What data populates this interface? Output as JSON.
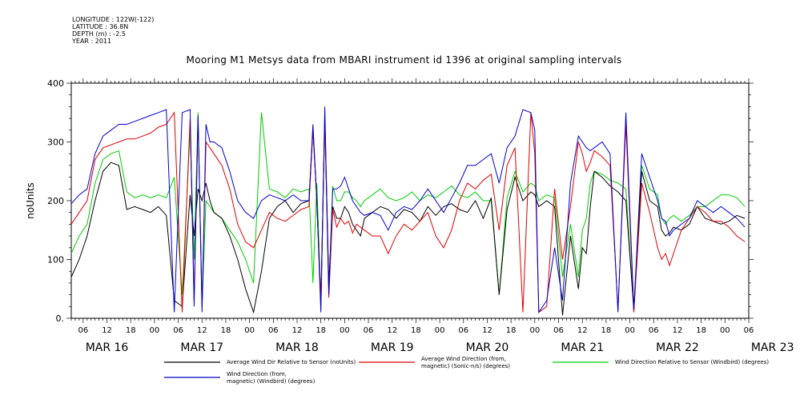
{
  "header": {
    "longitude": "LONGITUDE : 122W(-122)",
    "latitude": "LATITUDE : 36.8N",
    "depth": "DEPTH (m) : -2.5",
    "year": "YEAR : 2011"
  },
  "chart_data": {
    "type": "line",
    "title": "Mooring M1 Metsys data from MBARI instrument id 1396 at original sampling intervals",
    "ylabel": "noUnits",
    "xlabel": "",
    "ylim": [
      0,
      400
    ],
    "yticks": [
      0,
      100,
      200,
      300,
      400
    ],
    "ytick_labels": [
      "0.",
      "100",
      "200",
      "300",
      "400"
    ],
    "xlim_hours": [
      3,
      174
    ],
    "xtick_labels": [
      "06",
      "12",
      "18",
      "00",
      "06",
      "12",
      "18",
      "00",
      "06",
      "12",
      "18",
      "00",
      "06",
      "12",
      "18",
      "00",
      "06",
      "12",
      "18",
      "00",
      "06",
      "12",
      "18",
      "00",
      "06",
      "12",
      "18",
      "00",
      "06"
    ],
    "date_labels": [
      "MAR 16",
      "MAR 17",
      "MAR 18",
      "MAR 19",
      "MAR 20",
      "MAR 21",
      "MAR 22",
      "MAR 23"
    ],
    "grid": false,
    "legend_position": "bottom",
    "x_hours": [
      3,
      5,
      7,
      9,
      11,
      13,
      15,
      17,
      19,
      21,
      23,
      25,
      27,
      29,
      31,
      33,
      34,
      35,
      36,
      37,
      38,
      39,
      41,
      43,
      45,
      47,
      49,
      51,
      53,
      55,
      57,
      59,
      61,
      63,
      64,
      65,
      66,
      67,
      68,
      69,
      70,
      71,
      72,
      73,
      74,
      75,
      76,
      77,
      79,
      81,
      83,
      85,
      87,
      89,
      91,
      93,
      95,
      97,
      99,
      101,
      103,
      105,
      107,
      109,
      111,
      113,
      115,
      117,
      119,
      120,
      121,
      123,
      125,
      127,
      129,
      131,
      132,
      133,
      134,
      135,
      137,
      139,
      141,
      143,
      145,
      147,
      149,
      151,
      152,
      153,
      154,
      155,
      157,
      159,
      161,
      163,
      165,
      167,
      169,
      171,
      173
    ],
    "series": [
      {
        "name": "Average Wind Dir Relative to Sensor (noUnits)",
        "color": "#000000",
        "values": [
          70,
          100,
          140,
          200,
          250,
          265,
          260,
          185,
          190,
          185,
          180,
          190,
          175,
          30,
          20,
          210,
          140,
          220,
          200,
          230,
          200,
          180,
          170,
          140,
          100,
          50,
          10,
          80,
          170,
          190,
          200,
          180,
          195,
          200,
          320,
          200,
          20,
          340,
          60,
          190,
          170,
          170,
          190,
          180,
          160,
          150,
          140,
          170,
          180,
          190,
          185,
          170,
          185,
          180,
          165,
          190,
          175,
          190,
          195,
          185,
          180,
          200,
          170,
          205,
          40,
          185,
          240,
          200,
          215,
          210,
          190,
          200,
          190,
          5,
          140,
          50,
          120,
          110,
          190,
          250,
          240,
          225,
          215,
          200,
          15,
          250,
          200,
          190,
          150,
          140,
          145,
          155,
          150,
          160,
          190,
          170,
          165,
          160,
          165,
          175,
          170
        ]
      },
      {
        "name": "Average Wind Direction (from, magnetic) (Sonic-n/s) (degrees)",
        "color": "#dd0000",
        "values": [
          160,
          180,
          200,
          270,
          290,
          295,
          300,
          305,
          305,
          310,
          315,
          325,
          330,
          350,
          10,
          340,
          30,
          340,
          20,
          300,
          290,
          280,
          260,
          220,
          160,
          130,
          120,
          150,
          180,
          170,
          165,
          175,
          185,
          190,
          325,
          195,
          30,
          340,
          35,
          185,
          155,
          170,
          160,
          165,
          145,
          160,
          155,
          150,
          140,
          140,
          110,
          140,
          160,
          150,
          165,
          180,
          140,
          120,
          150,
          200,
          230,
          220,
          235,
          245,
          150,
          260,
          290,
          10,
          350,
          280,
          10,
          20,
          220,
          100,
          190,
          300,
          280,
          250,
          265,
          285,
          275,
          260,
          15,
          330,
          10,
          230,
          180,
          120,
          100,
          110,
          90,
          110,
          150,
          170,
          190,
          180,
          165,
          165,
          155,
          140,
          130
        ]
      },
      {
        "name": "Wind Direction Relative to Sensor (Windbird) (degrees)",
        "color": "#00cc00",
        "values": [
          110,
          140,
          160,
          230,
          270,
          280,
          285,
          215,
          205,
          210,
          205,
          210,
          205,
          240,
          40,
          320,
          100,
          350,
          20,
          200,
          190,
          180,
          170,
          150,
          130,
          100,
          60,
          350,
          220,
          215,
          205,
          220,
          215,
          220,
          60,
          230,
          30,
          350,
          45,
          225,
          200,
          200,
          215,
          215,
          205,
          200,
          190,
          200,
          210,
          220,
          205,
          200,
          205,
          215,
          200,
          210,
          205,
          215,
          225,
          210,
          205,
          215,
          200,
          200,
          40,
          205,
          250,
          215,
          230,
          225,
          200,
          210,
          205,
          70,
          160,
          70,
          150,
          170,
          230,
          250,
          245,
          235,
          230,
          220,
          10,
          260,
          220,
          210,
          170,
          160,
          170,
          175,
          165,
          175,
          190,
          190,
          200,
          210,
          210,
          205,
          190
        ]
      },
      {
        "name": "Wind Direction (from, magnetic) (Windbird) (degrees)",
        "color": "#0000cc",
        "values": [
          195,
          210,
          220,
          280,
          310,
          320,
          330,
          330,
          335,
          340,
          345,
          350,
          355,
          10,
          350,
          355,
          20,
          345,
          10,
          330,
          300,
          300,
          290,
          250,
          200,
          180,
          170,
          200,
          210,
          205,
          200,
          210,
          200,
          200,
          330,
          200,
          10,
          360,
          40,
          220,
          220,
          225,
          240,
          220,
          200,
          190,
          180,
          175,
          180,
          175,
          150,
          180,
          190,
          185,
          200,
          220,
          200,
          180,
          205,
          230,
          260,
          260,
          270,
          280,
          230,
          290,
          310,
          355,
          350,
          320,
          10,
          30,
          120,
          30,
          230,
          310,
          300,
          290,
          285,
          290,
          300,
          280,
          10,
          350,
          15,
          280,
          240,
          200,
          170,
          165,
          140,
          150,
          160,
          170,
          200,
          190,
          180,
          190,
          180,
          170,
          155
        ]
      }
    ]
  }
}
